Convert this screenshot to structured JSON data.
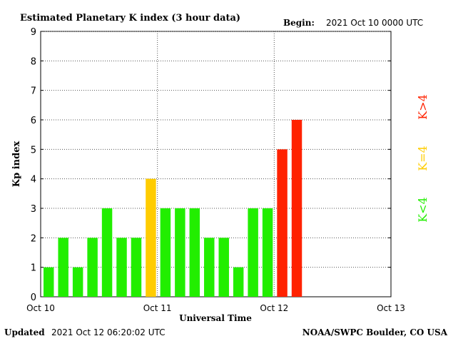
{
  "header": {
    "title": "Estimated Planetary K index (3 hour data)",
    "begin_label": "Begin:",
    "begin_value": "2021 Oct 10 0000 UTC"
  },
  "footer": {
    "updated_label": "Updated",
    "updated_value": "2021 Oct 12 06:20:02 UTC",
    "credit": "NOAA/SWPC Boulder, CO USA"
  },
  "legend": {
    "high": "K>4",
    "mid": "K=4",
    "low": "K<4"
  },
  "colors": {
    "low": "#22ee00",
    "mid": "#ffcc00",
    "high": "#ff2200"
  },
  "chart_data": {
    "type": "bar",
    "title": "Estimated Planetary K index (3 hour data)",
    "xlabel": "Universal Time",
    "ylabel": "Kp index",
    "ylim": [
      0,
      9
    ],
    "yticks": [
      "0",
      "1",
      "2",
      "3",
      "4",
      "5",
      "6",
      "7",
      "8",
      "9"
    ],
    "xticks": [
      "Oct 10",
      "Oct 11",
      "Oct 12",
      "Oct 13"
    ],
    "bars_per_day": 8,
    "total_slots": 24,
    "grid": true,
    "values": [
      1,
      2,
      1,
      2,
      3,
      2,
      2,
      4,
      3,
      3,
      3,
      2,
      2,
      1,
      3,
      3,
      5,
      6
    ]
  }
}
